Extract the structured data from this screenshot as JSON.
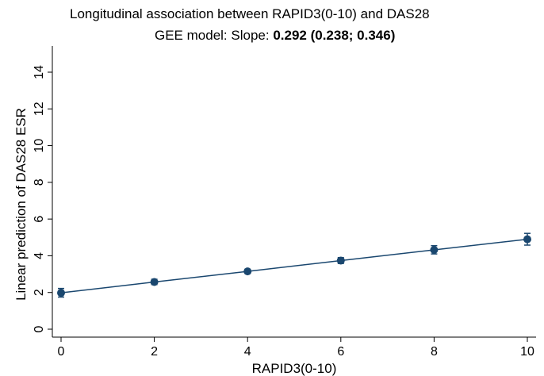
{
  "title": {
    "line1": "Longitudinal association between RAPID3(0-10) and DAS28",
    "line2_prefix": "GEE model: Slope: ",
    "line2_bold": "0.292 (0.238; 0.346)"
  },
  "chart_data": {
    "type": "line",
    "xlabel": "RAPID3(0-10)",
    "ylabel": "Linear prediction of DAS28 ESR",
    "xlim": [
      0,
      10
    ],
    "ylim": [
      0,
      14
    ],
    "xticks": [
      0,
      2,
      4,
      6,
      8,
      10
    ],
    "yticks": [
      0,
      2,
      4,
      6,
      8,
      10,
      12,
      14
    ],
    "grid": false,
    "series": [
      {
        "x": [
          0,
          2,
          4,
          6,
          8,
          10
        ],
        "y": [
          1.98,
          2.57,
          3.15,
          3.74,
          4.32,
          4.9
        ],
        "ci_lower": [
          1.75,
          2.43,
          3.05,
          3.58,
          4.1,
          4.58
        ],
        "ci_upper": [
          2.22,
          2.72,
          3.26,
          3.9,
          4.55,
          5.22
        ]
      }
    ],
    "colors": {
      "series": "#1a476f",
      "axis": "#000000"
    }
  }
}
